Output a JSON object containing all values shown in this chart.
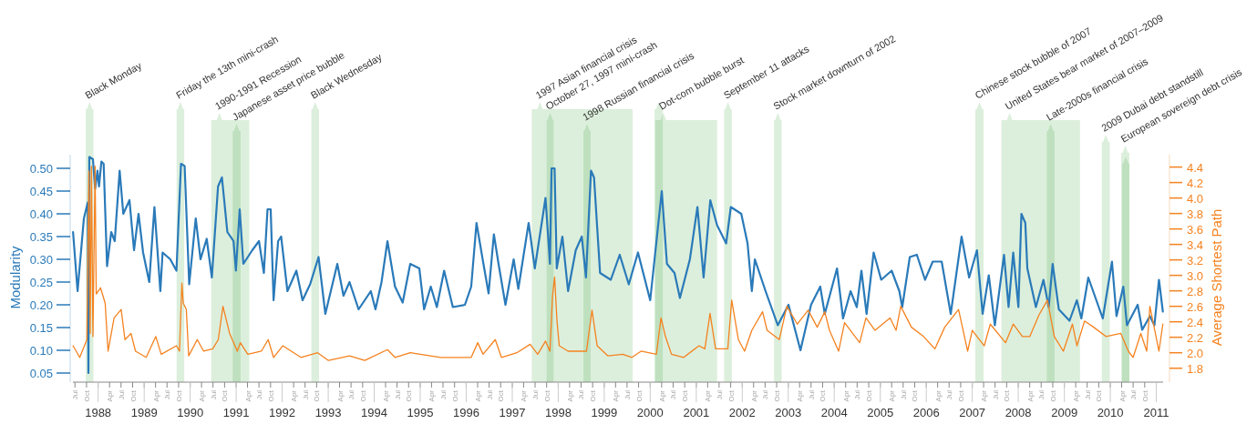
{
  "chart_data": {
    "type": "line",
    "ylabel": "Modularity",
    "y2label": "Average Shortest Path",
    "xlim": [
      "1987-06-15",
      "2011-02-24"
    ],
    "x2lim": [
      "1987-06-15",
      "2011-02-24"
    ],
    "x2ticks": [
      {
        "value": "1988-01",
        "label": "1988"
      },
      {
        "value": "1989-01",
        "label": "1989"
      },
      {
        "value": "1990-01",
        "label": "1990"
      },
      {
        "value": "1991-01",
        "label": "1991"
      },
      {
        "value": "1992-01",
        "label": "1992"
      },
      {
        "value": "1993-01",
        "label": "1993"
      },
      {
        "value": "1994-01",
        "label": "1994"
      },
      {
        "value": "1995-01",
        "label": "1995"
      },
      {
        "value": "1996-01",
        "label": "1996"
      },
      {
        "value": "1997-01",
        "label": "1997"
      },
      {
        "value": "1998-01",
        "label": "1998"
      },
      {
        "value": "1999-01",
        "label": "1999"
      },
      {
        "value": "2000-01",
        "label": "2000"
      },
      {
        "value": "2001-01",
        "label": "2001"
      },
      {
        "value": "2002-01",
        "label": "2002"
      },
      {
        "value": "2003-01",
        "label": "2003"
      },
      {
        "value": "2004-01",
        "label": "2004"
      },
      {
        "value": "2005-01",
        "label": "2005"
      },
      {
        "value": "2006-01",
        "label": "2006"
      },
      {
        "value": "2007-01",
        "label": "2007"
      },
      {
        "value": "2008-01",
        "label": "2008"
      },
      {
        "value": "2009-01",
        "label": "2009"
      },
      {
        "value": "2010-01",
        "label": "2010"
      },
      {
        "value": "2011-01",
        "label": "2011"
      }
    ],
    "ylim": [
      0.03,
      0.53
    ],
    "y2lim": [
      1.62,
      4.56
    ],
    "yticks": [
      {
        "value": 0.05,
        "label": "0.05"
      },
      {
        "value": 0.1,
        "label": "0.10"
      },
      {
        "value": 0.15,
        "label": "0.15"
      },
      {
        "value": 0.2,
        "label": "0.20"
      },
      {
        "value": 0.25,
        "label": "0.25"
      },
      {
        "value": 0.3,
        "label": "0.30"
      },
      {
        "value": 0.35,
        "label": "0.35"
      },
      {
        "value": 0.4,
        "label": "0.40"
      },
      {
        "value": 0.45,
        "label": "0.45"
      },
      {
        "value": 0.5,
        "label": "0.50"
      }
    ],
    "y2ticks": [
      {
        "value": 1.8,
        "label": "1.8"
      },
      {
        "value": 2,
        "label": "2.0"
      },
      {
        "value": 2.2,
        "label": "2.2"
      },
      {
        "value": 2.4,
        "label": "2.4"
      },
      {
        "value": 2.6,
        "label": "2.6"
      },
      {
        "value": 2.8,
        "label": "2.8"
      },
      {
        "value": 3,
        "label": "3.0"
      },
      {
        "value": 3.2,
        "label": "3.2"
      },
      {
        "value": 3.4,
        "label": "3.4"
      },
      {
        "value": 3.6,
        "label": "3.6"
      },
      {
        "value": 3.8,
        "label": "3.8"
      },
      {
        "value": 4,
        "label": "4.0"
      },
      {
        "value": 4.2,
        "label": "4.2"
      },
      {
        "value": 4.4,
        "label": "4.4"
      }
    ],
    "xticks": [
      {
        "value": "1987-07",
        "label": "Jul"
      },
      {
        "value": "1987-10",
        "label": "Oct"
      },
      {
        "value": "1988-01",
        "label": null
      },
      {
        "value": "1988-04",
        "label": "Apr"
      },
      {
        "value": "1988-07",
        "label": "Jul"
      },
      {
        "value": "1988-10",
        "label": "Oct"
      },
      {
        "value": "1989-01",
        "label": null
      },
      {
        "value": "1989-04",
        "label": "Apr"
      },
      {
        "value": "1989-07",
        "label": "Jul"
      },
      {
        "value": "1989-10",
        "label": "Oct"
      },
      {
        "value": "1990-01",
        "label": null
      },
      {
        "value": "1990-04",
        "label": "Apr"
      },
      {
        "value": "1990-07",
        "label": "Jul"
      },
      {
        "value": "1990-10",
        "label": "Oct"
      },
      {
        "value": "1991-01",
        "label": null
      },
      {
        "value": "1991-04",
        "label": "Apr"
      },
      {
        "value": "1991-07",
        "label": "Jul"
      },
      {
        "value": "1991-10",
        "label": "Oct"
      },
      {
        "value": "1992-01",
        "label": null
      },
      {
        "value": "1992-04",
        "label": "Apr"
      },
      {
        "value": "1992-07",
        "label": "Jul"
      },
      {
        "value": "1992-10",
        "label": "Oct"
      },
      {
        "value": "1993-01",
        "label": null
      },
      {
        "value": "1993-04",
        "label": "Apr"
      },
      {
        "value": "1993-07",
        "label": "Jul"
      },
      {
        "value": "1993-10",
        "label": "Oct"
      },
      {
        "value": "1994-01",
        "label": null
      },
      {
        "value": "1994-04",
        "label": "Apr"
      },
      {
        "value": "1994-07",
        "label": "Jul"
      },
      {
        "value": "1994-10",
        "label": "Oct"
      },
      {
        "value": "1995-01",
        "label": null
      },
      {
        "value": "1995-04",
        "label": "Apr"
      },
      {
        "value": "1995-07",
        "label": "Jul"
      },
      {
        "value": "1995-10",
        "label": "Oct"
      },
      {
        "value": "1996-01",
        "label": null
      },
      {
        "value": "1996-04",
        "label": "Apr"
      },
      {
        "value": "1996-07",
        "label": "Jul"
      },
      {
        "value": "1996-10",
        "label": "Oct"
      },
      {
        "value": "1997-01",
        "label": null
      },
      {
        "value": "1997-04",
        "label": "Apr"
      },
      {
        "value": "1997-07",
        "label": "Jul"
      },
      {
        "value": "1997-10",
        "label": "Oct"
      },
      {
        "value": "1998-01",
        "label": null
      },
      {
        "value": "1998-04",
        "label": "Apr"
      },
      {
        "value": "1998-07",
        "label": "Jul"
      },
      {
        "value": "1998-10",
        "label": "Oct"
      },
      {
        "value": "1999-01",
        "label": null
      },
      {
        "value": "1999-04",
        "label": "Apr"
      },
      {
        "value": "1999-07",
        "label": "Jul"
      },
      {
        "value": "1999-10",
        "label": "Oct"
      },
      {
        "value": "2000-01",
        "label": null
      },
      {
        "value": "2000-04",
        "label": "Apr"
      },
      {
        "value": "2000-07",
        "label": "Jul"
      },
      {
        "value": "2000-10",
        "label": "Oct"
      },
      {
        "value": "2001-01",
        "label": null
      },
      {
        "value": "2001-04",
        "label": "Apr"
      },
      {
        "value": "2001-07",
        "label": "Jul"
      },
      {
        "value": "2001-10",
        "label": "Oct"
      },
      {
        "value": "2002-01",
        "label": null
      },
      {
        "value": "2002-04",
        "label": "Apr"
      },
      {
        "value": "2002-07",
        "label": "Jul"
      },
      {
        "value": "2002-10",
        "label": "Oct"
      },
      {
        "value": "2003-01",
        "label": null
      },
      {
        "value": "2003-04",
        "label": "Apr"
      },
      {
        "value": "2003-07",
        "label": "Jul"
      },
      {
        "value": "2003-10",
        "label": "Oct"
      },
      {
        "value": "2004-01",
        "label": null
      },
      {
        "value": "2004-04",
        "label": "Apr"
      },
      {
        "value": "2004-07",
        "label": "Jul"
      },
      {
        "value": "2004-10",
        "label": "Oct"
      },
      {
        "value": "2005-01",
        "label": null
      },
      {
        "value": "2005-04",
        "label": "Apr"
      },
      {
        "value": "2005-07",
        "label": "Jul"
      },
      {
        "value": "2005-10",
        "label": "Oct"
      },
      {
        "value": "2006-01",
        "label": null
      },
      {
        "value": "2006-04",
        "label": "Apr"
      },
      {
        "value": "2006-07",
        "label": "Jul"
      },
      {
        "value": "2006-10",
        "label": "Oct"
      },
      {
        "value": "2007-01",
        "label": null
      },
      {
        "value": "2007-04",
        "label": "Apr"
      },
      {
        "value": "2007-07",
        "label": "Jul"
      },
      {
        "value": "2007-10",
        "label": "Oct"
      },
      {
        "value": "2008-01",
        "label": null
      },
      {
        "value": "2008-04",
        "label": "Apr"
      },
      {
        "value": "2008-07",
        "label": "Jul"
      },
      {
        "value": "2008-10",
        "label": "Oct"
      },
      {
        "value": "2009-01",
        "label": null
      },
      {
        "value": "2009-04",
        "label": "Apr"
      },
      {
        "value": "2009-07",
        "label": "Jul"
      },
      {
        "value": "2009-10",
        "label": "Oct"
      },
      {
        "value": "2010-01",
        "label": null
      },
      {
        "value": "2010-04",
        "label": "Apr"
      },
      {
        "value": "2010-07",
        "label": "Jul"
      },
      {
        "value": "2010-10",
        "label": "Oct"
      },
      {
        "value": "2011-01",
        "label": null
      }
    ],
    "bands": [
      {
        "axis": "x",
        "from": "1987-09-25",
        "to": "1987-11-25",
        "label": "Black Monday",
        "color": "#dcefdc"
      },
      {
        "axis": "x",
        "from": "1989-09-15",
        "to": "1989-11-15",
        "label": "Friday the 13th mini-crash",
        "color": "#dcefdc"
      },
      {
        "axis": "x",
        "from": "1990-06-17",
        "to": "1991-04-15",
        "label": "1990-1991 Recession",
        "color": "#dcefdc"
      },
      {
        "axis": "x",
        "from": "1990-12-05",
        "to": "1991-02-05",
        "label": "Japanese asset price bubble",
        "color": "#dcefdc"
      },
      {
        "axis": "x",
        "from": "1992-08-20",
        "to": "1992-10-20",
        "label": "Black Wednesday",
        "color": "#dcefdc"
      },
      {
        "axis": "x",
        "from": "1997-06-05",
        "to": "1999-08-15",
        "label": "1997 Asian financial crisis",
        "color": "#dcefdc"
      },
      {
        "axis": "x",
        "from": "1997-10-01",
        "to": "1997-11-25",
        "label": "October 27, 1997 mini-crash",
        "color": "#dcefdc"
      },
      {
        "axis": "x",
        "from": "1998-07-20",
        "to": "1998-09-15",
        "label": "1998 Russian financial crisis",
        "color": "#dcefdc"
      },
      {
        "axis": "x",
        "from": "2000-02-05",
        "to": "2000-04-10",
        "color": "#dcefdc"
      },
      {
        "axis": "x",
        "from": "2000-02-10",
        "to": "2001-06-15",
        "label": "Dot-com bubble burst",
        "color": "#dcefdc"
      },
      {
        "axis": "x",
        "from": "2001-08-10",
        "to": "2001-10-10",
        "label": "September 11 attacks",
        "color": "#dcefdc"
      },
      {
        "axis": "x",
        "from": "2002-09-10",
        "to": "2002-11-10",
        "label": "Stock market downturn of 2002",
        "color": "#dcefdc"
      },
      {
        "axis": "x",
        "from": "2007-01-25",
        "to": "2007-04-01",
        "label": "Chinese stock bubble of 2007",
        "color": "#dcefdc"
      },
      {
        "axis": "x",
        "from": "2007-08-20",
        "to": "2009-05-05",
        "label": "United States bear market of 2007–2009",
        "color": "#dcefdc"
      },
      {
        "axis": "x",
        "from": "2008-08-15",
        "to": "2008-10-15",
        "label": "Late-2000s financial crisis",
        "color": "#dcefdc"
      },
      {
        "axis": "x",
        "from": "2009-10-25",
        "to": "2009-12-28",
        "label": "2009 Dubai debt standstill",
        "color": "#dcefdc"
      },
      {
        "axis": "x",
        "from": "2010-03-28",
        "to": "2010-06-01",
        "label": "European sovereign debt crisis",
        "color": "#dcefdc"
      },
      {
        "axis": "x",
        "from": "2010-04-05",
        "to": "2010-06-01",
        "color": "#dcefdc"
      }
    ],
    "series": [
      {
        "color": "#2a7ab9",
        "x": [
          "1987-06-16",
          "1987-07-22",
          "1987-09-10",
          "1987-10-11",
          "1987-10-16",
          "1987-10-23",
          "1987-11-21",
          "1987-12-08",
          "1987-12-27",
          "1988-01-08",
          "1988-01-27",
          "1988-02-14",
          "1988-03-12",
          "1988-04-14",
          "1988-05-12",
          "1988-06-20",
          "1988-07-19",
          "1988-09-06",
          "1988-10-12",
          "1988-11-17",
          "1988-12-23",
          "1989-02-10",
          "1989-03-23",
          "1989-05-09",
          "1989-05-27",
          "1989-07-27",
          "1989-09-14",
          "1989-10-20",
          "1989-11-18",
          "1989-12-24",
          "1990-02-14",
          "1990-03-24",
          "1990-05-12",
          "1990-06-22",
          "1990-08-10",
          "1990-09-10",
          "1990-10-23",
          "1990-12-11",
          "1990-12-30",
          "1991-01-29",
          "1991-02-27",
          "1991-05-09",
          "1991-07-01",
          "1991-08-09",
          "1991-09-07",
          "1991-10-02",
          "1991-10-25",
          "1991-11-30",
          "1991-12-24",
          "1992-02-12",
          "1992-04-23",
          "1992-06-11",
          "1992-08-10",
          "1992-10-16",
          "1992-12-09",
          "1993-03-14",
          "1993-05-02",
          "1993-06-19",
          "1993-08-30",
          "1993-12-05",
          "1994-01-11",
          "1994-02-28",
          "1994-04-16",
          "1994-06-15",
          "1994-08-15",
          "1994-10-14",
          "1994-12-25",
          "1995-02-01",
          "1995-03-26",
          "1995-05-13",
          "1995-07-10",
          "1995-09-17",
          "1995-12-22",
          "1996-02-10",
          "1996-03-23",
          "1996-05-14",
          "1996-06-27",
          "1996-08-08",
          "1996-09-14",
          "1996-11-08",
          "1997-01-12",
          "1997-02-18",
          "1997-05-11",
          "1997-06-29",
          "1997-09-22",
          "1997-10-27",
          "1997-11-09",
          "1997-12-03",
          "1997-12-20",
          "1998-02-03",
          "1998-03-20",
          "1998-05-20",
          "1998-07-07",
          "1998-08-09",
          "1998-09-18",
          "1998-10-12",
          "1998-11-29",
          "1999-02-22",
          "1999-05-04",
          "1999-07-15",
          "1999-09-26",
          "2000-01-01",
          "2000-04-02",
          "2000-05-13",
          "2000-07-12",
          "2000-08-24",
          "2000-11-11",
          "2001-01-10",
          "2001-02-28",
          "2001-04-22",
          "2001-06-15",
          "2001-08-26",
          "2001-10-02",
          "2001-12-24",
          "2002-02-12",
          "2002-03-18",
          "2002-04-11",
          "2002-07-05",
          "2002-10-10",
          "2003-01-03",
          "2003-04-08",
          "2003-07-01",
          "2003-09-12",
          "2003-10-18",
          "2004-01-23",
          "2004-03-11",
          "2004-05-10",
          "2004-06-28",
          "2004-08-04",
          "2004-09-14",
          "2004-11-09",
          "2005-01-08",
          "2005-04-01",
          "2005-06-01",
          "2005-06-24",
          "2005-08-23",
          "2005-10-18",
          "2005-12-22",
          "2006-02-21",
          "2006-05-03",
          "2006-07-14",
          "2006-10-08",
          "2006-12-07",
          "2007-02-07",
          "2007-03-24",
          "2007-05-12",
          "2007-06-29",
          "2007-09-10",
          "2007-10-16",
          "2007-11-22",
          "2008-01-02",
          "2008-01-26",
          "2008-02-26",
          "2008-03-13",
          "2008-05-20",
          "2008-07-19",
          "2008-08-30",
          "2008-09-30",
          "2008-11-18",
          "2009-02-11",
          "2009-04-10",
          "2009-05-16",
          "2009-07-10",
          "2009-11-02",
          "2010-01-14",
          "2010-02-19",
          "2010-04-14",
          "2010-05-13",
          "2010-08-06",
          "2010-09-11",
          "2010-11-11",
          "2010-12-17",
          "2011-01-22",
          "2011-02-22"
        ],
        "values": [
          0.36,
          0.23,
          0.39,
          0.425,
          0.05,
          0.525,
          0.52,
          0.455,
          0.495,
          0.46,
          0.515,
          0.51,
          0.285,
          0.36,
          0.34,
          0.495,
          0.4,
          0.43,
          0.32,
          0.4,
          0.315,
          0.25,
          0.415,
          0.23,
          0.315,
          0.3,
          0.275,
          0.51,
          0.505,
          0.245,
          0.39,
          0.3,
          0.345,
          0.26,
          0.46,
          0.48,
          0.36,
          0.34,
          0.275,
          0.41,
          0.29,
          0.32,
          0.34,
          0.27,
          0.41,
          0.41,
          0.21,
          0.34,
          0.35,
          0.23,
          0.275,
          0.21,
          0.245,
          0.305,
          0.18,
          0.29,
          0.22,
          0.25,
          0.19,
          0.23,
          0.19,
          0.25,
          0.34,
          0.24,
          0.205,
          0.29,
          0.28,
          0.19,
          0.24,
          0.195,
          0.275,
          0.195,
          0.2,
          0.24,
          0.38,
          0.295,
          0.225,
          0.355,
          0.29,
          0.2,
          0.3,
          0.235,
          0.38,
          0.28,
          0.435,
          0.29,
          0.5,
          0.5,
          0.28,
          0.35,
          0.23,
          0.32,
          0.35,
          0.26,
          0.495,
          0.48,
          0.27,
          0.255,
          0.31,
          0.245,
          0.315,
          0.21,
          0.45,
          0.29,
          0.27,
          0.215,
          0.3,
          0.415,
          0.26,
          0.43,
          0.375,
          0.335,
          0.415,
          0.4,
          0.335,
          0.23,
          0.3,
          0.23,
          0.155,
          0.2,
          0.1,
          0.2,
          0.24,
          0.18,
          0.28,
          0.17,
          0.23,
          0.195,
          0.275,
          0.18,
          0.315,
          0.255,
          0.275,
          0.23,
          0.195,
          0.305,
          0.31,
          0.255,
          0.295,
          0.295,
          0.18,
          0.35,
          0.26,
          0.32,
          0.18,
          0.265,
          0.155,
          0.31,
          0.195,
          0.315,
          0.195,
          0.4,
          0.38,
          0.28,
          0.195,
          0.255,
          0.195,
          0.29,
          0.19,
          0.165,
          0.21,
          0.17,
          0.26,
          0.17,
          0.295,
          0.175,
          0.24,
          0.155,
          0.2,
          0.145,
          0.175,
          0.155,
          0.255,
          0.185
        ]
      },
      {
        "color": "#f5821f",
        "axis": "y2",
        "x": [
          "1987-06-16",
          "1987-08-08",
          "1987-10-04",
          "1987-10-20",
          "1987-10-30",
          "1987-11-09",
          "1987-11-21",
          "1987-12-08",
          "1987-12-17",
          "1988-01-20",
          "1988-02-26",
          "1988-03-20",
          "1988-05-07",
          "1988-07-02",
          "1988-08-01",
          "1988-09-18",
          "1988-10-24",
          "1989-01-17",
          "1989-04-03",
          "1989-05-16",
          "1989-09-14",
          "1989-10-08",
          "1989-10-27",
          "1989-11-07",
          "1989-12-01",
          "1989-12-20",
          "1990-02-26",
          "1990-04-18",
          "1990-06-29",
          "1990-08-12",
          "1990-09-18",
          "1990-11-10",
          "1991-01-10",
          "1991-02-03",
          "1991-04-03",
          "1991-07-20",
          "1991-09-12",
          "1991-10-25",
          "1992-01-06",
          "1992-05-29",
          "1992-10-09",
          "1993-01-03",
          "1993-06-19",
          "1993-10-18",
          "1994-04-16",
          "1994-06-15",
          "1994-10-14",
          "1995-06-12",
          "1996-02-10",
          "1996-04-02",
          "1996-05-14",
          "1996-08-19",
          "1996-10-07",
          "1997-02-06",
          "1997-05-23",
          "1997-07-22",
          "1997-09-22",
          "1997-10-27",
          "1997-11-16",
          "1997-12-03",
          "1997-12-22",
          "1998-01-09",
          "1998-03-20",
          "1998-05-20",
          "1998-08-13",
          "1998-09-26",
          "1998-11-06",
          "1999-01-29",
          "1999-05-28",
          "1999-08-09",
          "1999-10-20",
          "2000-02-19",
          "2000-03-27",
          "2000-05-01",
          "2000-06-18",
          "2000-09-23",
          "2001-01-22",
          "2001-03-10",
          "2001-04-20",
          "2001-06-03",
          "2001-09-08",
          "2001-10-09",
          "2001-12-01",
          "2002-01-19",
          "2002-03-18",
          "2002-06-11",
          "2002-07-17",
          "2002-10-22",
          "2002-12-21",
          "2003-03-14",
          "2003-06-08",
          "2003-08-19",
          "2003-10-18",
          "2003-11-24",
          "2004-02-05",
          "2004-03-23",
          "2004-07-21",
          "2004-09-09",
          "2004-11-20",
          "2005-03-19",
          "2005-05-06",
          "2005-06-12",
          "2005-09-05",
          "2005-12-10",
          "2006-03-10",
          "2006-05-27",
          "2006-09-14",
          "2006-11-25",
          "2007-01-01",
          "2007-04-06",
          "2007-05-24",
          "2007-09-22",
          "2007-11-22",
          "2008-02-03",
          "2008-04-02",
          "2008-06-14",
          "2008-08-20",
          "2008-10-13",
          "2008-12-24",
          "2009-03-06",
          "2009-04-11",
          "2009-06-10",
          "2009-08-22",
          "2009-11-27",
          "2010-03-25",
          "2010-05-24",
          "2010-07-01",
          "2010-08-31",
          "2010-10-17",
          "2010-11-11",
          "2011-01-22",
          "2011-02-22"
        ],
        "values": [
          2.09,
          1.94,
          2.17,
          4.35,
          2.25,
          4.41,
          2.21,
          4.41,
          2.76,
          2.84,
          2.64,
          2.02,
          2.45,
          2.56,
          2.17,
          2.25,
          2.02,
          1.94,
          2.21,
          1.98,
          2.09,
          2.02,
          2.9,
          2.64,
          2.56,
          1.96,
          2.17,
          2.02,
          2.05,
          2.17,
          2.6,
          2.25,
          2.02,
          2.13,
          1.98,
          2.02,
          2.17,
          1.94,
          2.09,
          1.94,
          2.0,
          1.9,
          1.96,
          1.9,
          2.04,
          1.94,
          2.0,
          1.94,
          1.94,
          2.13,
          1.98,
          2.17,
          1.94,
          2.0,
          2.11,
          1.98,
          2.15,
          2.02,
          2.72,
          2.98,
          2.41,
          2.09,
          2.02,
          2.02,
          2.02,
          2.55,
          2.09,
          1.96,
          1.98,
          1.94,
          2.02,
          1.98,
          2.45,
          2.21,
          1.98,
          1.94,
          2.09,
          2.05,
          2.51,
          2.05,
          2.05,
          2.68,
          2.17,
          2.02,
          2.29,
          2.53,
          2.29,
          2.17,
          2.6,
          2.37,
          2.55,
          2.33,
          2.53,
          2.29,
          2.02,
          2.39,
          2.13,
          2.45,
          2.29,
          2.45,
          2.29,
          2.6,
          2.33,
          2.21,
          2.05,
          2.33,
          2.56,
          2.02,
          2.29,
          2.09,
          2.37,
          2.13,
          2.37,
          2.21,
          2.21,
          2.49,
          2.68,
          2.21,
          2.02,
          2.37,
          2.09,
          2.41,
          2.33,
          2.21,
          2.25,
          2.02,
          1.94,
          2.25,
          2.02,
          2.6,
          2.02,
          2.37
        ]
      }
    ]
  }
}
